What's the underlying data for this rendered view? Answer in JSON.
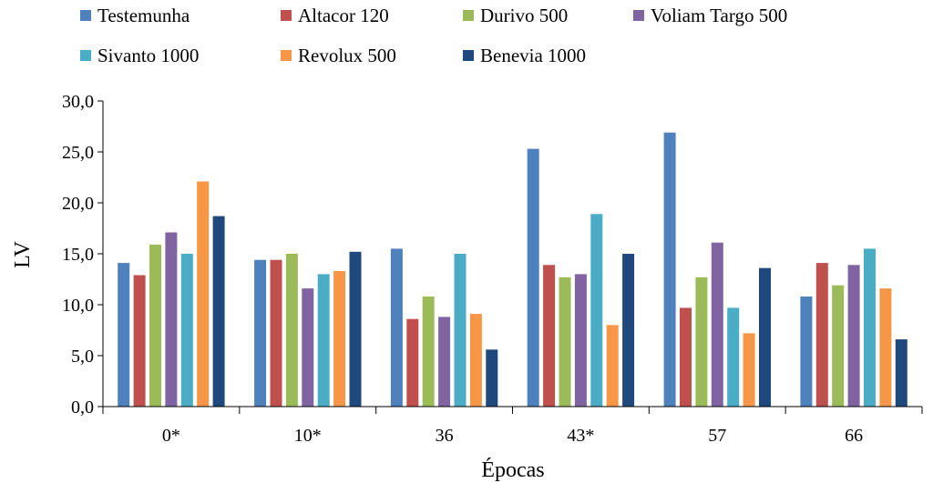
{
  "chart_data": {
    "type": "bar",
    "title": "",
    "xlabel": "Épocas",
    "ylabel": "LV",
    "ylim": [
      0,
      30
    ],
    "yticks": [
      "0,0",
      "5,0",
      "10,0",
      "15,0",
      "20,0",
      "25,0",
      "30,0"
    ],
    "grid": false,
    "legend_position": "top",
    "categories": [
      "0*",
      "10*",
      "36",
      "43*",
      "57",
      "66"
    ],
    "series": [
      {
        "name": "Testemunha",
        "color": "#4f81bd",
        "values": [
          14.1,
          14.4,
          15.5,
          25.3,
          26.9,
          10.8
        ]
      },
      {
        "name": "Altacor 120",
        "color": "#c0504d",
        "values": [
          12.9,
          14.4,
          8.6,
          13.9,
          9.7,
          14.1
        ]
      },
      {
        "name": "Durivo 500",
        "color": "#9bbb59",
        "values": [
          15.9,
          15.0,
          10.8,
          12.7,
          12.7,
          11.9
        ]
      },
      {
        "name": "Voliam Targo 500",
        "color": "#8064a2",
        "values": [
          17.1,
          11.6,
          8.8,
          13.0,
          16.1,
          13.9
        ]
      },
      {
        "name": "Sivanto 1000",
        "color": "#4bacc6",
        "values": [
          15.0,
          13.0,
          15.0,
          18.9,
          9.7,
          15.5
        ]
      },
      {
        "name": "Revolux 500",
        "color": "#f79646",
        "values": [
          22.1,
          13.3,
          9.1,
          8.0,
          7.2,
          11.6
        ]
      },
      {
        "name": "Benevia 1000",
        "color": "#1f497d",
        "values": [
          18.7,
          15.2,
          5.6,
          15.0,
          13.6,
          6.6
        ]
      }
    ]
  }
}
